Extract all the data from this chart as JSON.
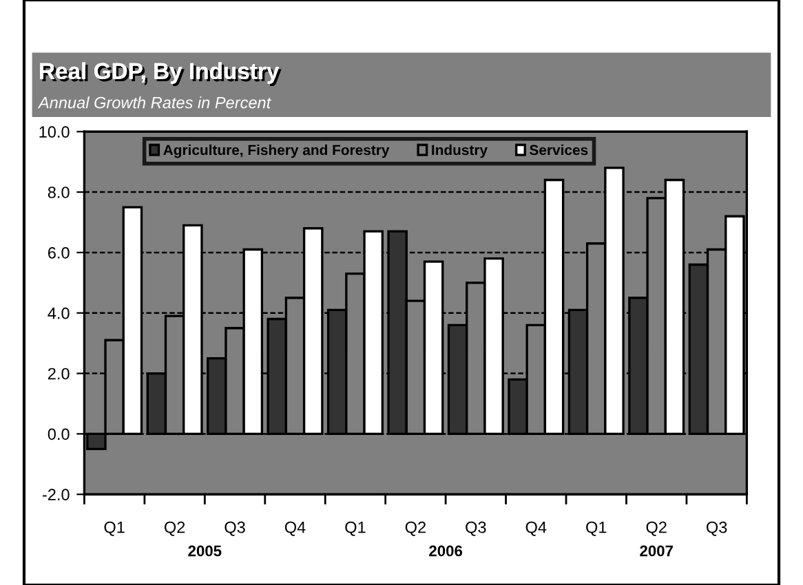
{
  "chart_data": {
    "type": "bar",
    "title": "Real GDP, By Industry",
    "subtitle": "Annual Growth Rates in Percent",
    "categories": [
      "Q1",
      "Q2",
      "Q3",
      "Q4",
      "Q1",
      "Q2",
      "Q3",
      "Q4",
      "Q1",
      "Q2",
      "Q3"
    ],
    "series": [
      {
        "name": "Agriculture, Fishery and Forestry",
        "color": "#333333",
        "values": [
          -0.5,
          2.0,
          2.5,
          3.8,
          4.1,
          6.7,
          3.6,
          1.8,
          4.1,
          4.5,
          5.6
        ]
      },
      {
        "name": "Industry",
        "color": "#808080",
        "values": [
          3.1,
          3.9,
          3.5,
          4.5,
          5.3,
          4.4,
          5.0,
          3.6,
          6.3,
          7.8,
          6.1
        ]
      },
      {
        "name": "Services",
        "color": "#ffffff",
        "values": [
          7.5,
          6.9,
          6.1,
          6.8,
          6.7,
          5.7,
          5.8,
          8.4,
          8.8,
          8.4,
          7.2
        ]
      }
    ],
    "annotations": [
      "2005",
      "2006",
      "2007"
    ],
    "ylim": [
      -2.0,
      10.0
    ],
    "yticks": [
      {
        "value": -2,
        "label": "-2.0"
      },
      {
        "value": 0,
        "label": "0.0"
      },
      {
        "value": 2,
        "label": "2.0"
      },
      {
        "value": 4,
        "label": "4.0"
      },
      {
        "value": 6,
        "label": "6.0"
      },
      {
        "value": 8,
        "label": "8.0"
      },
      {
        "value": 10,
        "label": "10.0"
      }
    ],
    "grid": "y",
    "legend": "top"
  }
}
